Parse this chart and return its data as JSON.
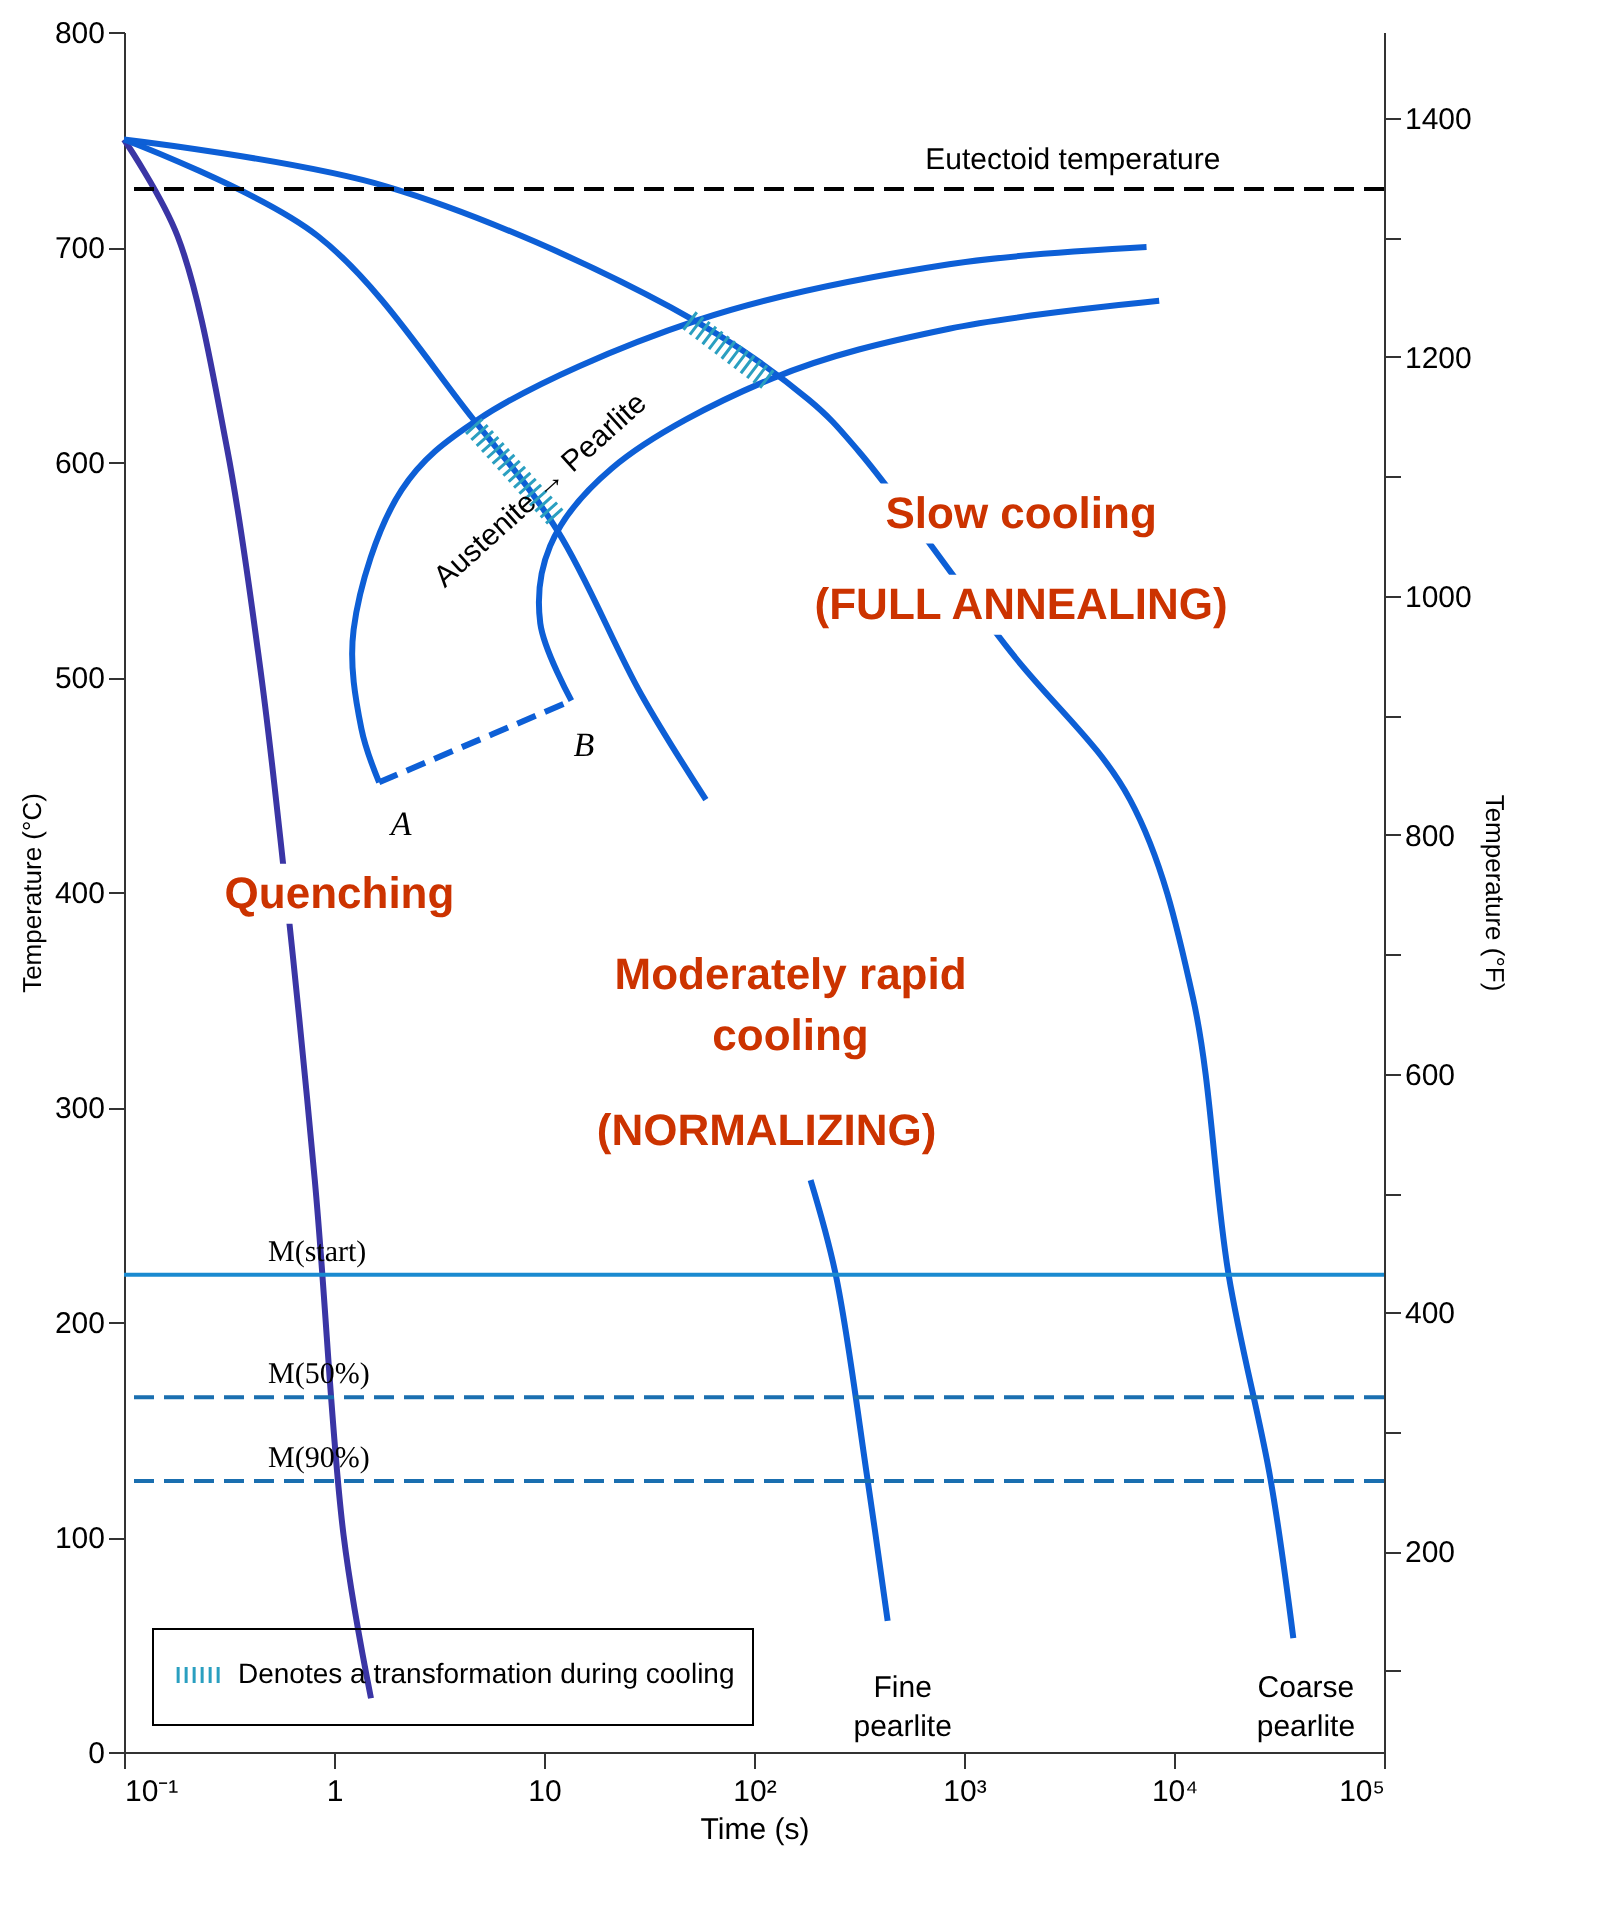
{
  "chart_data": {
    "type": "line",
    "xlabel": "Time (s)",
    "ylabel": "Temperature (°C)",
    "y2label": "Temperature (°F)",
    "log": "x",
    "grid": false,
    "legend": "bottom left",
    "marker": "none",
    "xlim": [
      0.1,
      100000
    ],
    "xticks": [
      {
        "value": 0.1,
        "label": "10⁻¹"
      },
      1,
      10,
      {
        "value": 100,
        "label": "10²"
      },
      {
        "value": 1000,
        "label": "10³"
      },
      {
        "value": 10000,
        "label": "10⁴"
      },
      {
        "value": 100000,
        "label": "10⁵"
      }
    ],
    "ylim": [
      0,
      800
    ],
    "yticks": [
      0,
      100,
      200,
      300,
      400,
      500,
      600,
      700,
      800
    ],
    "y2lim": [
      32,
      1472
    ],
    "y2ticks": [
      {
        "value": 100,
        "label": null
      },
      200,
      {
        "value": 300,
        "label": null
      },
      400,
      {
        "value": 500,
        "label": null
      },
      600,
      {
        "value": 700,
        "label": null
      },
      800,
      {
        "value": 900,
        "label": null
      },
      1000,
      {
        "value": 1100,
        "label": null
      },
      1200,
      {
        "value": 1300,
        "label": null
      },
      1400
    ],
    "series": [
      {
        "color": "#3a35a5",
        "line_style": "solid",
        "x": [
          0.1,
          0.18,
          0.31,
          0.44,
          0.52,
          0.81,
          1.11,
          1.5
        ],
        "values": [
          750,
          705,
          606,
          508,
          450,
          266,
          101,
          25
        ]
      },
      {
        "color": "#0d5fd6",
        "line_style": "solid",
        "x": [
          0.1,
          0.84,
          4.6,
          11.6,
          29,
          59,
          150,
          186,
          245,
          347,
          433
        ],
        "values": [
          750,
          705,
          620,
          568,
          492,
          443,
          null,
          266,
          222,
          127,
          61
        ]
      },
      {
        "color": "#0d5fd6",
        "line_style": "solid",
        "x": [
          0.1,
          1.8,
          40,
          182,
          315,
          1660,
          6170,
          12300,
          18200,
          28800,
          37000
        ],
        "values": [
          750,
          728,
          672,
          629,
          605,
          512,
          443,
          351,
          222,
          127,
          53
        ]
      },
      {
        "color": "#0d5fd6",
        "line_style": "solid",
        "x": [
          7400,
          850,
          54,
          4.9,
          2.1,
          1.24,
          1.35,
          1.64
        ],
        "values": [
          700,
          692,
          666,
          620,
          587,
          522,
          476,
          451
        ]
      },
      {
        "color": "#0d5fd6",
        "line_style": "solid",
        "x": [
          8500,
          850,
          123,
          21,
          10.7,
          9.6,
          13.5
        ],
        "values": [
          675,
          662,
          639,
          597,
          561,
          525,
          489
        ]
      },
      {
        "color": "#0d5fd6",
        "line_style": "dashed",
        "x": [
          1.64,
          2.7,
          13.5
        ],
        "values": [
          451,
          460,
          489
        ]
      },
      {
        "name": "Denotes a transformation during cooling",
        "color": "#2a9fc0",
        "line_style": "dotted",
        "x": [
          4.6,
          11.4,
          null,
          49,
          117
        ],
        "values": [
          617,
          574,
          null,
          666,
          638
        ]
      }
    ],
    "ref_lines": [
      {
        "axis": "y",
        "value": 727,
        "color": "#000000",
        "line_style": "dashed"
      },
      {
        "axis": "y",
        "value": 222,
        "label": "M(start)",
        "color": "#1a8ad0",
        "line_style": "solid"
      },
      {
        "axis": "y",
        "value": 165,
        "label": "M(50%)",
        "color": "#1a6fb0",
        "line_style": "dashed"
      },
      {
        "axis": "y",
        "value": 126,
        "label": "M(90%)",
        "color": "#1a6fb0",
        "line_style": "dashed"
      }
    ],
    "annotations": [
      "Quenching",
      "Moderately rapid",
      "cooling",
      "(NORMALIZING)",
      "Slow cooling",
      "(FULL ANNEALING)",
      "Austenite → Pearlite",
      "A",
      "B",
      "Fine",
      "pearlite",
      "Coarse",
      "pearlite",
      "Eutectoid temperature"
    ]
  }
}
